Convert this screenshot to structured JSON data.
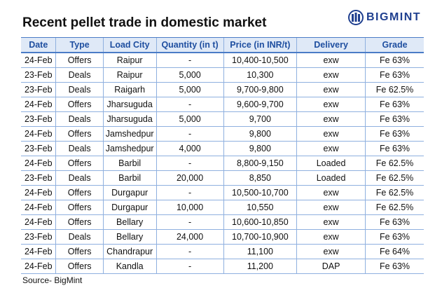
{
  "header": {
    "title": "Recent pellet trade in domestic market",
    "logo": "BIGMINT"
  },
  "table": {
    "columns": [
      "Date",
      "Type",
      "Load City",
      "Quantity (in t)",
      "Price (in INR/t)",
      "Delivery",
      "Grade"
    ],
    "rows": [
      [
        "24-Feb",
        "Offers",
        "Raipur",
        "-",
        "10,400-10,500",
        "exw",
        "Fe 63%"
      ],
      [
        "23-Feb",
        "Deals",
        "Raipur",
        "5,000",
        "10,300",
        "exw",
        "Fe 63%"
      ],
      [
        "23-Feb",
        "Deals",
        "Raigarh",
        "5,000",
        "9,700-9,800",
        "exw",
        "Fe 62.5%"
      ],
      [
        "24-Feb",
        "Offers",
        "Jharsuguda",
        "-",
        "9,600-9,700",
        "exw",
        "Fe 63%"
      ],
      [
        "23-Feb",
        "Deals",
        "Jharsuguda",
        "5,000",
        "9,700",
        "exw",
        "Fe 63%"
      ],
      [
        "24-Feb",
        "Offers",
        "Jamshedpur",
        "-",
        "9,800",
        "exw",
        "Fe 63%"
      ],
      [
        "23-Feb",
        "Deals",
        "Jamshedpur",
        "4,000",
        "9,800",
        "exw",
        "Fe 63%"
      ],
      [
        "24-Feb",
        "Offers",
        "Barbil",
        "-",
        "8,800-9,150",
        "Loaded",
        "Fe 62.5%"
      ],
      [
        "23-Feb",
        "Deals",
        "Barbil",
        "20,000",
        "8,850",
        "Loaded",
        "Fe 62.5%"
      ],
      [
        "24-Feb",
        "Offers",
        "Durgapur",
        "-",
        "10,500-10,700",
        "exw",
        "Fe 62.5%"
      ],
      [
        "24-Feb",
        "Offers",
        "Durgapur",
        "10,000",
        "10,550",
        "exw",
        "Fe 62.5%"
      ],
      [
        "24-Feb",
        "Offers",
        "Bellary",
        "-",
        "10,600-10,850",
        "exw",
        "Fe 63%"
      ],
      [
        "23-Feb",
        "Deals",
        "Bellary",
        "24,000",
        "10,700-10,900",
        "exw",
        "Fe 63%"
      ],
      [
        "24-Feb",
        "Offers",
        "Chandrapur",
        "-",
        "11,100",
        "exw",
        "Fe 64%"
      ],
      [
        "24-Feb",
        "Offers",
        "Kandla",
        "-",
        "11,200",
        "DAP",
        "Fe 63%"
      ]
    ]
  },
  "source": "Source- BigMint"
}
